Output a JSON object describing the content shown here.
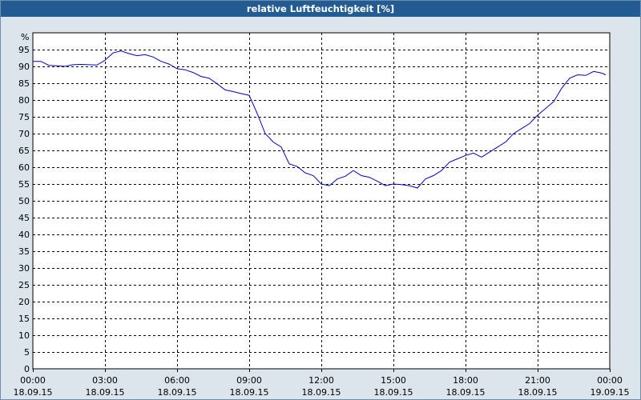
{
  "window": {
    "title": "relative Luftfeuchtigkeit [%]"
  },
  "colors": {
    "titlebar": "#235c93",
    "line": "#0000cc",
    "background": "#dce4ec",
    "plot": "#ffffff"
  },
  "chart_data": {
    "type": "line",
    "title": "relative Luftfeuchtigkeit [%]",
    "ylabel": "%",
    "xlabel": "",
    "ylim": [
      0,
      100
    ],
    "y_ticks": [
      0,
      5,
      10,
      15,
      20,
      25,
      30,
      35,
      40,
      45,
      50,
      55,
      60,
      65,
      70,
      75,
      80,
      85,
      90,
      95
    ],
    "x_ticks": [
      {
        "time": "00:00",
        "date": "18.09.15"
      },
      {
        "time": "03:00",
        "date": "18.09.15"
      },
      {
        "time": "06:00",
        "date": "18.09.15"
      },
      {
        "time": "09:00",
        "date": "18.09.15"
      },
      {
        "time": "12:00",
        "date": "18.09.15"
      },
      {
        "time": "15:00",
        "date": "18.09.15"
      },
      {
        "time": "18:00",
        "date": "18.09.15"
      },
      {
        "time": "21:00",
        "date": "18.09.15"
      },
      {
        "time": "00:00",
        "date": "19.09.15"
      }
    ],
    "grid": true,
    "legend": "none",
    "series": [
      {
        "time": [
          "00:00",
          "00:20",
          "00:40",
          "01:00",
          "01:20",
          "01:40",
          "02:00",
          "02:20",
          "02:40",
          "03:00",
          "03:20",
          "03:40",
          "04:00",
          "04:20",
          "04:40",
          "05:00",
          "05:20",
          "05:40",
          "06:00",
          "06:20",
          "06:40",
          "07:00",
          "07:20",
          "07:40",
          "08:00",
          "08:20",
          "08:40",
          "09:00",
          "09:20",
          "09:40",
          "10:00",
          "10:20",
          "10:40",
          "11:00",
          "11:20",
          "11:40",
          "12:00",
          "12:20",
          "12:40",
          "13:00",
          "13:20",
          "13:40",
          "14:00",
          "14:20",
          "14:40",
          "15:00",
          "15:20",
          "15:40",
          "16:00",
          "16:20",
          "16:40",
          "17:00",
          "17:20",
          "17:40",
          "18:00",
          "18:20",
          "18:40",
          "19:00",
          "19:20",
          "19:40",
          "20:00",
          "20:20",
          "20:40",
          "21:00",
          "21:20",
          "21:40",
          "22:00",
          "22:20",
          "22:40",
          "23:00",
          "23:20",
          "23:40",
          "23:50"
        ],
        "values": [
          91.5,
          91.5,
          90.3,
          90.2,
          90.0,
          90.5,
          90.6,
          90.5,
          90.4,
          91.8,
          94.0,
          94.6,
          93.8,
          93.2,
          93.5,
          92.8,
          91.5,
          90.7,
          89.3,
          89.0,
          88.2,
          87.0,
          86.5,
          84.8,
          83.0,
          82.5,
          81.9,
          81.4,
          76.0,
          70.0,
          67.5,
          66.0,
          61.0,
          60.2,
          58.3,
          57.5,
          55.0,
          54.5,
          56.5,
          57.3,
          59.0,
          57.5,
          57.0,
          55.8,
          54.5,
          55.0,
          54.8,
          54.5,
          53.8,
          56.5,
          57.5,
          59.0,
          61.5,
          62.5,
          63.5,
          64.2,
          63.0,
          64.5,
          66.0,
          67.5,
          70.0,
          71.5,
          73.0,
          75.5,
          77.5,
          79.5,
          83.5,
          86.5,
          87.5,
          87.3,
          88.5,
          88.0,
          87.5
        ]
      }
    ]
  }
}
